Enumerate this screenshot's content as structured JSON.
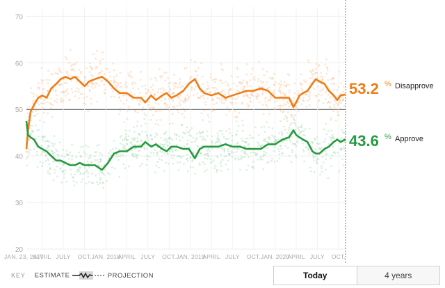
{
  "chart_data": {
    "type": "line",
    "title": "",
    "xlabel": "",
    "ylabel": "",
    "ylim": [
      20,
      72
    ],
    "yticks": [
      20,
      30,
      40,
      50,
      60,
      70
    ],
    "grid": true,
    "x_tick_labels": [
      "JAN. 23, 2017",
      "APRIL",
      "JULY",
      "OCT.",
      "JAN. 2018",
      "APRIL",
      "JULY",
      "OCT.",
      "JAN. 2019",
      "APRIL",
      "JULY",
      "OCT.",
      "JAN. 2020",
      "APRIL",
      "JULY",
      "OCT."
    ],
    "x_start": "2017-01-23",
    "x_end": "2020-10-31",
    "reference_line": 50,
    "series": [
      {
        "name": "Disapprove",
        "color": "#ef7c14",
        "final_value": "53.2",
        "points": [
          [
            "2017-01-23",
            41.5
          ],
          [
            "2017-01-30",
            45.5
          ],
          [
            "2017-02-10",
            49.5
          ],
          [
            "2017-02-25",
            51.0
          ],
          [
            "2017-03-15",
            52.5
          ],
          [
            "2017-04-01",
            53.0
          ],
          [
            "2017-04-20",
            52.5
          ],
          [
            "2017-05-10",
            54.5
          ],
          [
            "2017-06-01",
            55.5
          ],
          [
            "2017-06-20",
            56.5
          ],
          [
            "2017-07-10",
            57.0
          ],
          [
            "2017-08-01",
            56.5
          ],
          [
            "2017-08-20",
            57.0
          ],
          [
            "2017-09-10",
            56.0
          ],
          [
            "2017-10-01",
            55.0
          ],
          [
            "2017-10-20",
            56.0
          ],
          [
            "2017-11-15",
            56.5
          ],
          [
            "2017-12-15",
            57.0
          ],
          [
            "2018-01-10",
            56.0
          ],
          [
            "2018-02-05",
            54.5
          ],
          [
            "2018-03-01",
            53.5
          ],
          [
            "2018-04-01",
            53.5
          ],
          [
            "2018-05-01",
            52.5
          ],
          [
            "2018-06-01",
            52.5
          ],
          [
            "2018-06-20",
            51.5
          ],
          [
            "2018-07-15",
            53.0
          ],
          [
            "2018-08-05",
            52.0
          ],
          [
            "2018-09-01",
            53.0
          ],
          [
            "2018-09-20",
            53.5
          ],
          [
            "2018-10-10",
            52.5
          ],
          [
            "2018-11-01",
            53.0
          ],
          [
            "2018-12-01",
            54.0
          ],
          [
            "2018-12-25",
            55.5
          ],
          [
            "2019-01-20",
            56.5
          ],
          [
            "2019-02-10",
            54.5
          ],
          [
            "2019-03-01",
            53.5
          ],
          [
            "2019-04-01",
            53.0
          ],
          [
            "2019-05-01",
            53.5
          ],
          [
            "2019-06-01",
            52.5
          ],
          [
            "2019-07-01",
            53.0
          ],
          [
            "2019-08-01",
            53.5
          ],
          [
            "2019-09-01",
            54.0
          ],
          [
            "2019-10-01",
            54.0
          ],
          [
            "2019-11-01",
            54.5
          ],
          [
            "2019-12-01",
            54.0
          ],
          [
            "2020-01-01",
            52.5
          ],
          [
            "2020-02-01",
            52.5
          ],
          [
            "2020-03-01",
            52.5
          ],
          [
            "2020-03-20",
            50.5
          ],
          [
            "2020-04-01",
            51.5
          ],
          [
            "2020-04-15",
            53.0
          ],
          [
            "2020-05-01",
            53.5
          ],
          [
            "2020-05-20",
            54.0
          ],
          [
            "2020-06-10",
            55.5
          ],
          [
            "2020-06-25",
            56.5
          ],
          [
            "2020-07-10",
            56.0
          ],
          [
            "2020-08-01",
            55.5
          ],
          [
            "2020-08-20",
            54.0
          ],
          [
            "2020-09-10",
            53.0
          ],
          [
            "2020-09-25",
            52.0
          ],
          [
            "2020-10-10",
            53.0
          ],
          [
            "2020-10-31",
            53.2
          ]
        ]
      },
      {
        "name": "Approve",
        "color": "#259a3f",
        "final_value": "43.6",
        "points": [
          [
            "2017-01-23",
            47.5
          ],
          [
            "2017-01-30",
            44.5
          ],
          [
            "2017-02-10",
            44.0
          ],
          [
            "2017-02-25",
            43.5
          ],
          [
            "2017-03-15",
            42.0
          ],
          [
            "2017-04-01",
            41.5
          ],
          [
            "2017-04-20",
            41.0
          ],
          [
            "2017-05-10",
            40.0
          ],
          [
            "2017-06-01",
            39.0
          ],
          [
            "2017-06-20",
            39.0
          ],
          [
            "2017-07-10",
            38.5
          ],
          [
            "2017-08-01",
            38.0
          ],
          [
            "2017-08-20",
            38.0
          ],
          [
            "2017-09-10",
            38.5
          ],
          [
            "2017-10-01",
            38.0
          ],
          [
            "2017-10-20",
            38.0
          ],
          [
            "2017-11-15",
            38.0
          ],
          [
            "2017-12-15",
            37.0
          ],
          [
            "2018-01-10",
            38.5
          ],
          [
            "2018-02-05",
            40.5
          ],
          [
            "2018-03-01",
            41.0
          ],
          [
            "2018-04-01",
            41.0
          ],
          [
            "2018-05-01",
            42.0
          ],
          [
            "2018-06-01",
            42.0
          ],
          [
            "2018-06-20",
            43.0
          ],
          [
            "2018-07-15",
            42.0
          ],
          [
            "2018-08-05",
            42.5
          ],
          [
            "2018-09-01",
            41.5
          ],
          [
            "2018-09-20",
            41.0
          ],
          [
            "2018-10-10",
            42.0
          ],
          [
            "2018-11-01",
            42.0
          ],
          [
            "2018-12-01",
            41.5
          ],
          [
            "2018-12-25",
            41.5
          ],
          [
            "2019-01-20",
            39.5
          ],
          [
            "2019-02-10",
            41.5
          ],
          [
            "2019-03-01",
            42.0
          ],
          [
            "2019-04-01",
            42.0
          ],
          [
            "2019-05-01",
            42.0
          ],
          [
            "2019-06-01",
            42.5
          ],
          [
            "2019-07-01",
            42.0
          ],
          [
            "2019-08-01",
            42.0
          ],
          [
            "2019-09-01",
            41.5
          ],
          [
            "2019-10-01",
            41.5
          ],
          [
            "2019-11-01",
            41.5
          ],
          [
            "2019-12-01",
            42.5
          ],
          [
            "2020-01-01",
            42.5
          ],
          [
            "2020-02-01",
            43.5
          ],
          [
            "2020-03-01",
            44.0
          ],
          [
            "2020-03-20",
            45.5
          ],
          [
            "2020-04-01",
            44.5
          ],
          [
            "2020-04-15",
            44.0
          ],
          [
            "2020-05-01",
            43.5
          ],
          [
            "2020-05-20",
            43.0
          ],
          [
            "2020-06-10",
            41.0
          ],
          [
            "2020-06-25",
            40.5
          ],
          [
            "2020-07-10",
            40.5
          ],
          [
            "2020-08-01",
            41.5
          ],
          [
            "2020-08-20",
            42.0
          ],
          [
            "2020-09-10",
            43.0
          ],
          [
            "2020-09-25",
            43.5
          ],
          [
            "2020-10-10",
            43.0
          ],
          [
            "2020-10-31",
            43.6
          ]
        ]
      }
    ]
  },
  "labels": {
    "disapprove_value": "53.2",
    "disapprove_pct": "%",
    "disapprove_name": "Disapprove",
    "approve_value": "43.6",
    "approve_pct": "%",
    "approve_name": "Approve"
  },
  "key": {
    "title": "KEY",
    "estimate": "ESTIMATE",
    "projection": "PROJECTION"
  },
  "range_toggle": {
    "active": "Today",
    "inactive": "4 years"
  }
}
